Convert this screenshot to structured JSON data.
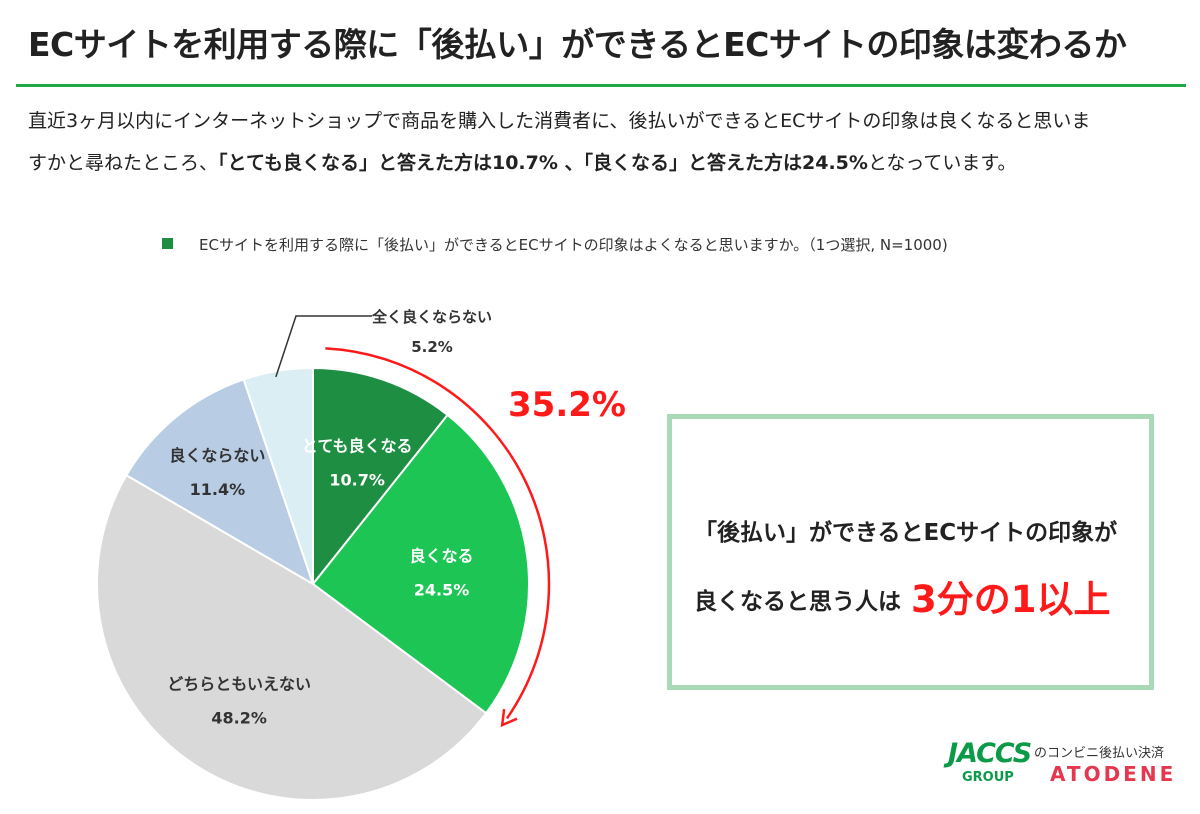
{
  "title": "ECサイトを利用する際に「後払い」ができるとECサイトの印象は変わるか",
  "description": {
    "line1": "直近3ヶ月以内にインターネットショップで商品を購入した消費者に、後払いができるとECサイトの印象は良くなると思いま",
    "line2_prefix": "すかと尋ねたところ、",
    "line2_bold1": "「とても良くなる」と答えた方は10.7% 、「良くなる」と答えた方は24.5%",
    "line2_suffix": "となっています。"
  },
  "legend": {
    "label": "ECサイトを利用する際に「後払い」ができるとECサイトの印象はよくなると思いますか。（1つ選択, N=1000)",
    "color": "#1e8f42"
  },
  "chart_data": {
    "type": "pie",
    "start": "12 o'clock",
    "direction": "clockwise",
    "slices": [
      {
        "label": "とても良くなる",
        "value": 10.7,
        "value_text": "10.7%",
        "color": "#1e8f42"
      },
      {
        "label": "良くなる",
        "value": 24.5,
        "value_text": "24.5%",
        "color": "#1dc654"
      },
      {
        "label": "どちらともいえない",
        "value": 48.2,
        "value_text": "48.2%",
        "color": "#d9d9d9"
      },
      {
        "label": "良くならない",
        "value": 11.4,
        "value_text": "11.4%",
        "color": "#b8cce4"
      },
      {
        "label": "全く良くならない",
        "value": 5.2,
        "value_text": "5.2%",
        "color": "#dbeef4"
      }
    ],
    "annotation": {
      "text": "35.2%",
      "color": "#ff1a1a"
    }
  },
  "callout": {
    "line1": "「後払い」ができるとECサイトの印象が",
    "line2": "良くなると思う人は",
    "highlight": "3分の1以上",
    "highlight_color": "#ff1a1a"
  },
  "logo": {
    "jaccs": "JACCS",
    "group": "GROUP",
    "sub": "のコンビニ後払い決済",
    "atodene": "ATODENE"
  }
}
